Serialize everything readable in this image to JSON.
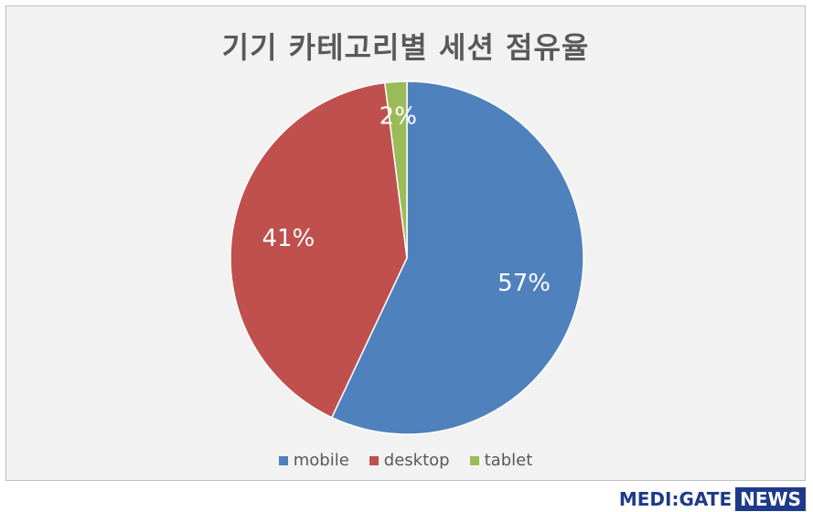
{
  "chart_data": {
    "type": "pie",
    "title": "기기 카테고리별 세션 점유율",
    "slices": [
      {
        "name": "mobile",
        "value": 57,
        "label": "57%",
        "color": "#4f81bd"
      },
      {
        "name": "desktop",
        "value": 41,
        "label": "41%",
        "color": "#c0504d"
      },
      {
        "name": "tablet",
        "value": 2,
        "label": "2%",
        "color": "#9bbb59"
      }
    ],
    "legend_position": "bottom"
  },
  "brand": {
    "left": "MEDI:GATE",
    "right": "NEWS"
  }
}
